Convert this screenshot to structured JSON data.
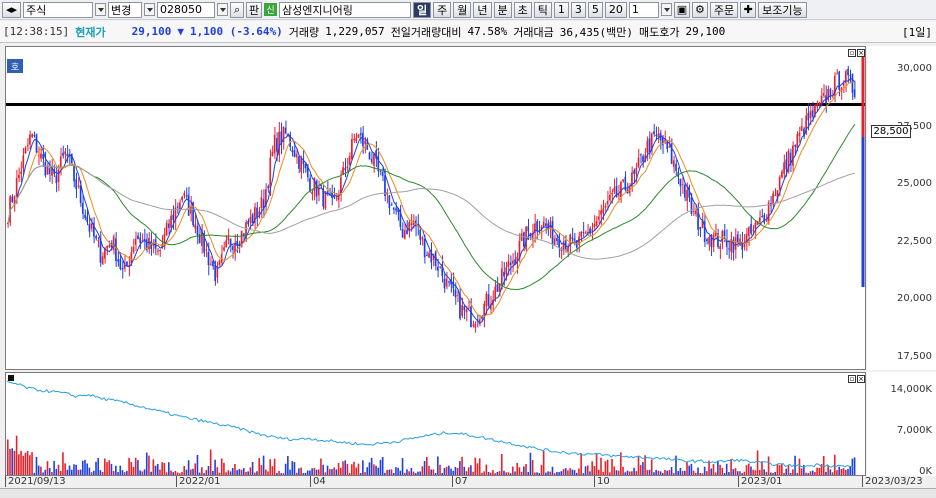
{
  "toolbar": {
    "market": "주식",
    "change_label": "변경",
    "code": "028050",
    "pan_label": "판",
    "stock_name": "삼성엔지니어링",
    "periods": [
      "일",
      "주",
      "월",
      "년",
      "분",
      "초",
      "틱"
    ],
    "intervals": [
      "1",
      "3",
      "5",
      "20"
    ],
    "count_value": "1",
    "order_label": "주문",
    "aux_label": "보조기능"
  },
  "infobar": {
    "time": "[12:38:15]",
    "price_label": "현재가",
    "price": "29,100",
    "down_arrow": "▼",
    "change": "1,100 (-3.64%)",
    "volume_label": "거래량",
    "volume": "1,229,057",
    "prev_ratio_label": "전일거래량대비",
    "prev_ratio": "47.58%",
    "amount_label": "거래대금",
    "amount": "36,435(백만)",
    "ask_label": "매도호가",
    "ask": "29,100",
    "period_tag": "[1일]"
  },
  "main_panel": {
    "badge": "호",
    "current_price_tag": "28,500",
    "y_ticks": [
      "30,000",
      "27,500",
      "25,000",
      "22,500",
      "20,000",
      "17,500"
    ]
  },
  "vol_panel": {
    "y_ticks": [
      "14,000K",
      "7,000K",
      "0K"
    ]
  },
  "x_axis": {
    "labels": [
      "2021/09/13",
      "2022/01",
      "04",
      "07",
      "10",
      "2023/01",
      "2023/03/23"
    ]
  },
  "colors": {
    "up": "#e8202a",
    "down": "#1f3fe0",
    "ma5": "#1f3fe0",
    "ma10": "#f08a1c",
    "ma20": "#2a8a2a",
    "ma60": "#a0a0a0",
    "volume_line": "#2aa0e0"
  },
  "chart_data": {
    "type": "candlestick",
    "ylim": [
      17000,
      31000
    ],
    "current_line": 28500,
    "x_start": "2021/09/13",
    "x_end": "2023/03/23",
    "x_ticks": [
      "2021/09/13",
      "2022/01",
      "04",
      "07",
      "10",
      "2023/01",
      "2023/03/23"
    ],
    "close_path": [
      23800,
      25500,
      27200,
      26000,
      25200,
      26400,
      24800,
      23200,
      22000,
      22600,
      21000,
      22800,
      22400,
      22000,
      23400,
      24600,
      23600,
      22200,
      21000,
      22500,
      22800,
      23500,
      24200,
      26800,
      27200,
      26200,
      25200,
      24600,
      24000,
      25600,
      27200,
      26600,
      25400,
      24200,
      23000,
      23400,
      22200,
      21600,
      20500,
      19600,
      19200,
      19700,
      20400,
      21300,
      22200,
      23100,
      23400,
      22800,
      22600,
      22300,
      22900,
      23600,
      24300,
      24800,
      25300,
      26600,
      27100,
      26400,
      25200,
      23800,
      23000,
      22600,
      22600,
      22400,
      22800,
      23500,
      24600,
      25800,
      26900,
      27800,
      28400,
      29200,
      29700,
      29100
    ],
    "volume_ylim": [
      0,
      17500
    ],
    "volume_line_path": [
      16000,
      15500,
      14800,
      14500,
      14300,
      14000,
      13500,
      13800,
      13200,
      12800,
      12500,
      12000,
      11500,
      11000,
      10500,
      10000,
      9600,
      9200,
      8800,
      8400,
      8000,
      7400,
      6900,
      6500,
      6200,
      6100,
      6300,
      6000,
      5800,
      5600,
      5400,
      5200,
      5400,
      5600,
      5900,
      6300,
      6700,
      7000,
      7300,
      7100,
      6800,
      6400,
      6000,
      5600,
      5200,
      4800,
      4400,
      4100,
      3900,
      3700,
      3600,
      3500,
      3300,
      3200,
      3100,
      3000,
      2900,
      2700,
      2500,
      2400,
      2300,
      2200,
      2400,
      2600,
      2300,
      2100,
      1900,
      1700,
      1600,
      1500,
      1800,
      1600,
      1500,
      1400
    ]
  }
}
